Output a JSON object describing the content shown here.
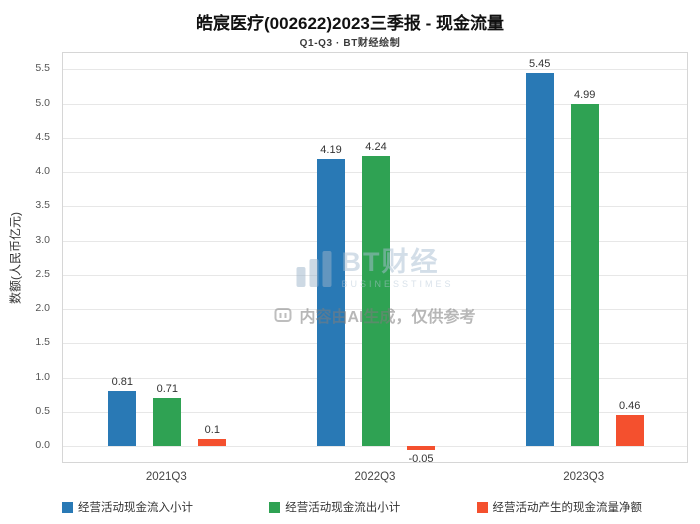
{
  "title": "皓宸医疗(002622)2023三季报 - 现金流量",
  "subtitle": "Q1-Q3 · BT财经绘制",
  "watermark": {
    "brand": "BT财经",
    "brand_sub": "BUSINESSTIMES",
    "disclaimer": "内容由AI生成，仅供参考"
  },
  "chart_data": {
    "type": "bar",
    "categories": [
      "2021Q3",
      "2022Q3",
      "2023Q3"
    ],
    "series": [
      {
        "name": "经营活动现金流入小计",
        "color": "#2979b5",
        "values": [
          0.81,
          4.19,
          5.45
        ]
      },
      {
        "name": "经营活动现金流出小计",
        "color": "#2fa253",
        "values": [
          0.71,
          4.24,
          4.99
        ]
      },
      {
        "name": "经营活动产生的现金流量净额",
        "color": "#f4502e",
        "values": [
          0.1,
          -0.05,
          0.46
        ]
      }
    ],
    "title": "皓宸医疗(002622)2023三季报 - 现金流量",
    "xlabel": "",
    "ylabel": "数额(人民币亿元)",
    "ylim": [
      -0.26,
      5.74
    ],
    "ytick_step": 0.5,
    "yticks": [
      "0.0",
      "0.5",
      "1.0",
      "1.5",
      "2.0",
      "2.5",
      "3.0",
      "3.5",
      "4.0",
      "4.5",
      "5.0",
      "5.5"
    ],
    "grid": true,
    "legend_position": "bottom"
  }
}
